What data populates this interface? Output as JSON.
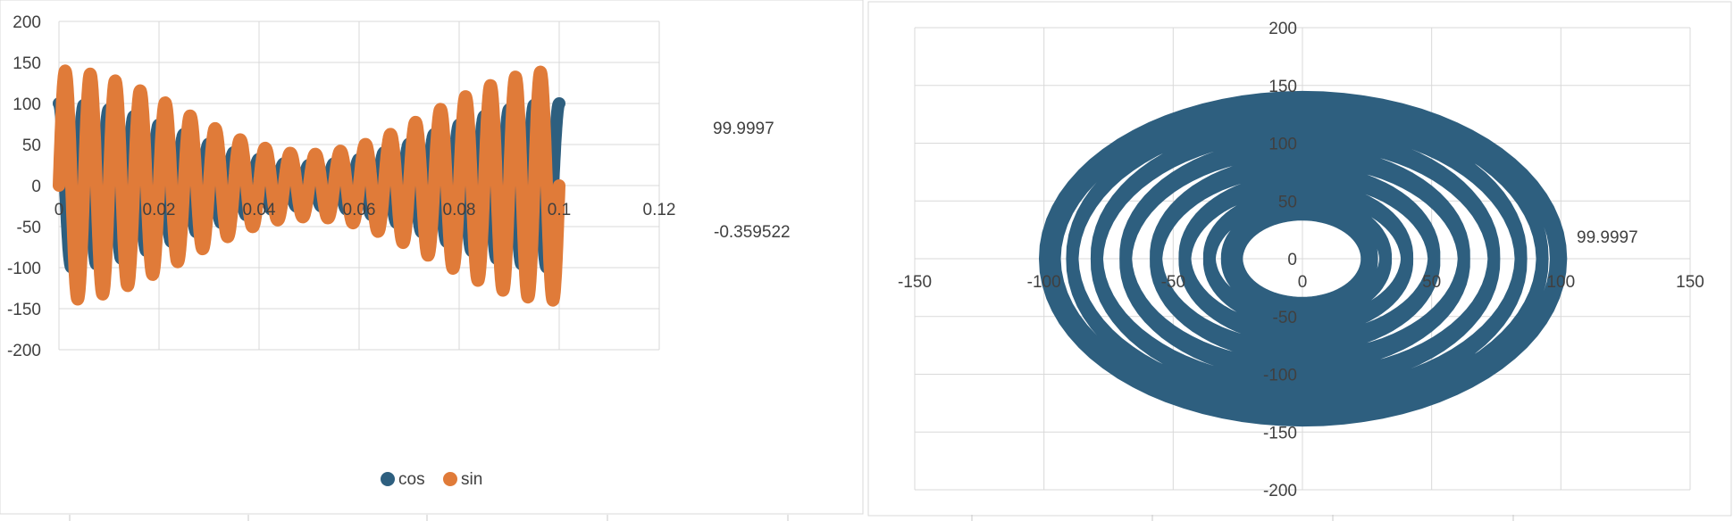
{
  "colors": {
    "cos": "#2e5f7f",
    "sin": "#e07b39",
    "grid": "#d9d9d9",
    "text": "#404040"
  },
  "chart_data": [
    {
      "type": "line",
      "title": "",
      "xlabel": "",
      "ylabel": "",
      "xlim": [
        0,
        0.12
      ],
      "ylim": [
        -200,
        200
      ],
      "x_ticks": [
        "0",
        "0.02",
        "0.04",
        "0.06",
        "0.08",
        "0.1",
        "0.12"
      ],
      "y_ticks": [
        "200",
        "150",
        "100",
        "50",
        "0",
        "-50",
        "-100",
        "-150",
        "-200"
      ],
      "grid": true,
      "legend_position": "bottom",
      "series": [
        {
          "name": "cos",
          "end_label": "99.9997"
        },
        {
          "name": "sin",
          "end_label": "-0.359522"
        }
      ],
      "model": {
        "x_start": 0,
        "x_end": 0.1,
        "carrier_cycles": 20,
        "x_amplitude_max": 100,
        "x_amplitude_min": 25,
        "y_amplitude_max": 140,
        "y_amplitude_min": 27
      }
    },
    {
      "type": "scatter",
      "title": "",
      "xlim": [
        -150,
        150
      ],
      "ylim": [
        -200,
        200
      ],
      "x_ticks": [
        "-150",
        "-100",
        "-50",
        "0",
        "50",
        "100",
        "150"
      ],
      "y_ticks": [
        "200",
        "150",
        "100",
        "50",
        "0",
        "-50",
        "-100",
        "-150",
        "-200"
      ],
      "grid": true,
      "legend_position": "none",
      "series": [
        {
          "name": "",
          "end_label": "99.9997"
        }
      ]
    }
  ]
}
